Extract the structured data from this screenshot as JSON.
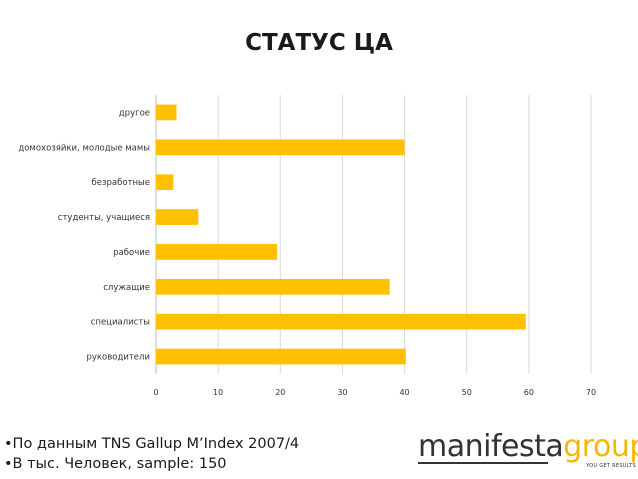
{
  "title": "СТАТУС ЦА",
  "chart_data": {
    "type": "bar",
    "orientation": "horizontal",
    "categories": [
      "другое",
      "домохозяйки, молодые мамы",
      "безработные",
      "студенты, учащиеся",
      "рабочие",
      "служащие",
      "специалисты",
      "руководители"
    ],
    "values": [
      3.3,
      40,
      2.8,
      6.8,
      19.5,
      37.6,
      59.5,
      40.2
    ],
    "xlim": [
      0,
      70
    ],
    "xticks": [
      "0",
      "10",
      "20",
      "30",
      "40",
      "50",
      "60",
      "70"
    ],
    "grid": true,
    "bar_color": "#FFC000"
  },
  "footnotes": [
    "•По данным TNS Gallup M’Index 2007/4",
    "•В тыс. Человек, sample: 150"
  ],
  "logo": {
    "part1": "manifesta",
    "part2": "group",
    "tagline": "YOU GET RESULTS"
  }
}
